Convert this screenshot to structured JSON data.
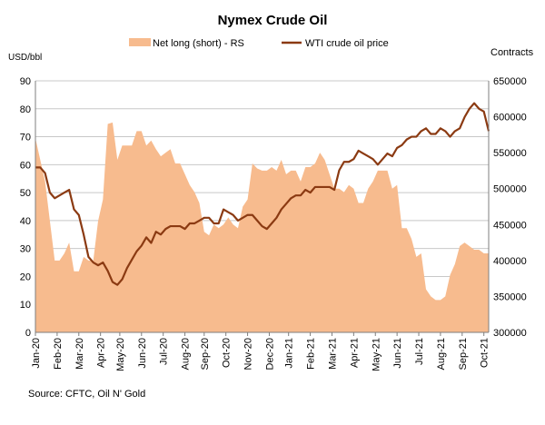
{
  "chart_data": {
    "type": "area+line",
    "title": "Nymex Crude Oil",
    "source": "Source: CFTC, Oil N' Gold",
    "left_axis": {
      "label": "USD/bbl",
      "min": 0,
      "max": 90,
      "step": 10,
      "ticks": [
        "0",
        "10",
        "20",
        "30",
        "40",
        "50",
        "60",
        "70",
        "80",
        "90"
      ]
    },
    "right_axis": {
      "label": "Contracts",
      "min": 300000,
      "max": 650000,
      "step": 50000,
      "ticks": [
        "300000",
        "350000",
        "400000",
        "450000",
        "500000",
        "550000",
        "600000",
        "650000"
      ]
    },
    "x_axis": {
      "ticks": [
        "Jan-20",
        "Feb-20",
        "Mar-20",
        "Apr-20",
        "May-20",
        "Jun-20",
        "Jul-20",
        "Aug-20",
        "Sep-20",
        "Oct-20",
        "Nov-20",
        "Dec-20",
        "Jan-21",
        "Feb-21",
        "Mar-21",
        "Apr-21",
        "May-21",
        "Jun-21",
        "Jul-21",
        "Aug-21",
        "Sep-21",
        "Oct-21"
      ],
      "first_week": 0,
      "last_week": 94,
      "tick_weeks": [
        0,
        4.5,
        9,
        13.5,
        17.5,
        22,
        26.5,
        31,
        35,
        39.5,
        44,
        48.5,
        52.5,
        57,
        61.5,
        66,
        70.5,
        75,
        79.5,
        84,
        88.5,
        93
      ]
    },
    "grid": "horizontal",
    "legend": {
      "position": "top",
      "entries": [
        {
          "label": "Net long (short) - RS",
          "color": "#f7bb8e",
          "kind": "area"
        },
        {
          "label": "WTI crude oil price",
          "color": "#8b3a12",
          "kind": "line"
        }
      ]
    },
    "series": [
      {
        "name": "Net long (short) - RS",
        "axis": "right",
        "color": "#f7bb8e",
        "values": [
          570000,
          540000,
          510000,
          455000,
          400000,
          400000,
          410000,
          425000,
          385000,
          385000,
          405000,
          400000,
          400000,
          455000,
          485000,
          590000,
          592000,
          540000,
          560000,
          560000,
          560000,
          580000,
          580000,
          560000,
          567000,
          555000,
          545000,
          550000,
          555000,
          535000,
          535000,
          520000,
          505000,
          495000,
          480000,
          440000,
          435000,
          450000,
          445000,
          450000,
          460000,
          450000,
          445000,
          475000,
          485000,
          535000,
          528000,
          525000,
          525000,
          530000,
          525000,
          540000,
          520000,
          525000,
          525000,
          510000,
          530000,
          530000,
          535000,
          550000,
          540000,
          520000,
          500000,
          500000,
          495000,
          505000,
          500000,
          480000,
          480000,
          500000,
          510000,
          525000,
          525000,
          525000,
          500000,
          505000,
          445000,
          445000,
          430000,
          405000,
          410000,
          360000,
          350000,
          345000,
          345000,
          350000,
          380000,
          395000,
          420000,
          425000,
          420000,
          415000,
          415000,
          410000,
          410000
        ]
      },
      {
        "name": "WTI crude oil price",
        "axis": "left",
        "color": "#8b3a12",
        "values": [
          59,
          59,
          57,
          50,
          48,
          49,
          50,
          51,
          44,
          42,
          35,
          27,
          25,
          24,
          25,
          22,
          18,
          17,
          19,
          23,
          26,
          29,
          31,
          34,
          32,
          36,
          35,
          37,
          38,
          38,
          38,
          37,
          39,
          39,
          40,
          41,
          41,
          39,
          39,
          44,
          43,
          42,
          40,
          41,
          42,
          42,
          40,
          38,
          37,
          39,
          41,
          44,
          46,
          48,
          49,
          49,
          51,
          50,
          52,
          52,
          52,
          52,
          51,
          58,
          61,
          61,
          62,
          65,
          64,
          63,
          62,
          60,
          62,
          64,
          63,
          66,
          67,
          69,
          70,
          70,
          72,
          73,
          71,
          71,
          73,
          72,
          70,
          72,
          73,
          77,
          80,
          82,
          80,
          79,
          72
        ]
      }
    ]
  }
}
